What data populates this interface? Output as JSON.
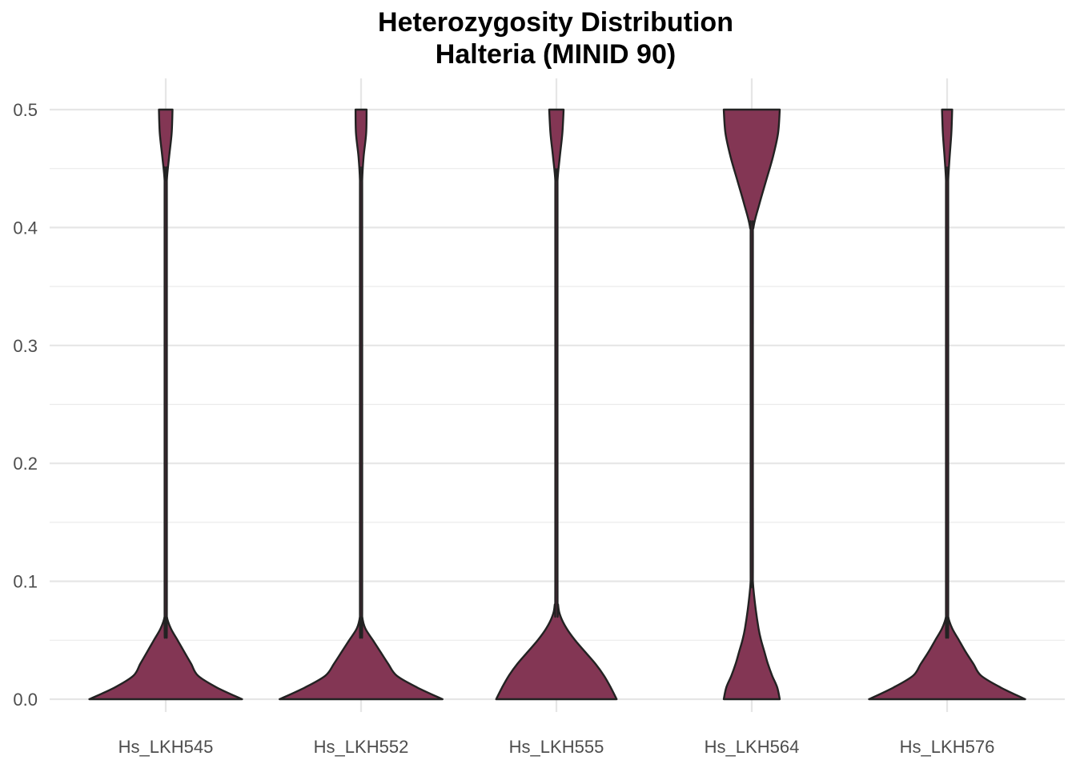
{
  "chart_data": {
    "type": "violin",
    "title": "Heterozygosity Distribution",
    "subtitle": "Halteria (MINID 90)",
    "xlabel": "",
    "ylabel": "",
    "categories": [
      "Hs_LKH545",
      "Hs_LKH552",
      "Hs_LKH555",
      "Hs_LKH564",
      "Hs_LKH576"
    ],
    "ylim": [
      0,
      0.5
    ],
    "yticks": [
      "0.0",
      "0.1",
      "0.2",
      "0.3",
      "0.4",
      "0.5"
    ],
    "grid": true,
    "legend": "none",
    "fill_color": "#833654",
    "outline_color": "#222222",
    "series": [
      {
        "category": "Hs_LKH545",
        "density_profile": [
          [
            0.0,
            0.9
          ],
          [
            0.01,
            0.6
          ],
          [
            0.02,
            0.38
          ],
          [
            0.03,
            0.3
          ],
          [
            0.04,
            0.22
          ],
          [
            0.05,
            0.14
          ],
          [
            0.06,
            0.06
          ],
          [
            0.07,
            0.01
          ],
          [
            0.08,
            0.0
          ],
          [
            0.42,
            0.0
          ],
          [
            0.44,
            0.01
          ],
          [
            0.46,
            0.04
          ],
          [
            0.48,
            0.07
          ],
          [
            0.5,
            0.08
          ]
        ]
      },
      {
        "category": "Hs_LKH552",
        "density_profile": [
          [
            0.0,
            0.96
          ],
          [
            0.01,
            0.66
          ],
          [
            0.02,
            0.42
          ],
          [
            0.03,
            0.32
          ],
          [
            0.04,
            0.23
          ],
          [
            0.05,
            0.14
          ],
          [
            0.06,
            0.05
          ],
          [
            0.07,
            0.01
          ],
          [
            0.08,
            0.0
          ],
          [
            0.42,
            0.0
          ],
          [
            0.44,
            0.01
          ],
          [
            0.46,
            0.03
          ],
          [
            0.48,
            0.06
          ],
          [
            0.5,
            0.065
          ]
        ]
      },
      {
        "category": "Hs_LKH555",
        "density_profile": [
          [
            0.0,
            0.71
          ],
          [
            0.01,
            0.64
          ],
          [
            0.02,
            0.56
          ],
          [
            0.03,
            0.46
          ],
          [
            0.04,
            0.34
          ],
          [
            0.05,
            0.22
          ],
          [
            0.06,
            0.12
          ],
          [
            0.07,
            0.05
          ],
          [
            0.08,
            0.02
          ],
          [
            0.1,
            0.0
          ],
          [
            0.42,
            0.0
          ],
          [
            0.44,
            0.01
          ],
          [
            0.46,
            0.04
          ],
          [
            0.48,
            0.07
          ],
          [
            0.5,
            0.085
          ]
        ]
      },
      {
        "category": "Hs_LKH564",
        "density_profile": [
          [
            0.0,
            0.33
          ],
          [
            0.01,
            0.3
          ],
          [
            0.02,
            0.24
          ],
          [
            0.03,
            0.19
          ],
          [
            0.04,
            0.15
          ],
          [
            0.05,
            0.11
          ],
          [
            0.06,
            0.08
          ],
          [
            0.08,
            0.04
          ],
          [
            0.1,
            0.01
          ],
          [
            0.12,
            0.0
          ],
          [
            0.38,
            0.0
          ],
          [
            0.4,
            0.02
          ],
          [
            0.42,
            0.09
          ],
          [
            0.44,
            0.17
          ],
          [
            0.46,
            0.25
          ],
          [
            0.48,
            0.31
          ],
          [
            0.5,
            0.33
          ]
        ]
      },
      {
        "category": "Hs_LKH576",
        "density_profile": [
          [
            0.0,
            0.92
          ],
          [
            0.01,
            0.63
          ],
          [
            0.02,
            0.4
          ],
          [
            0.03,
            0.31
          ],
          [
            0.04,
            0.22
          ],
          [
            0.05,
            0.14
          ],
          [
            0.06,
            0.06
          ],
          [
            0.07,
            0.01
          ],
          [
            0.08,
            0.0
          ],
          [
            0.42,
            0.0
          ],
          [
            0.44,
            0.01
          ],
          [
            0.46,
            0.03
          ],
          [
            0.48,
            0.05
          ],
          [
            0.5,
            0.06
          ]
        ]
      }
    ]
  }
}
